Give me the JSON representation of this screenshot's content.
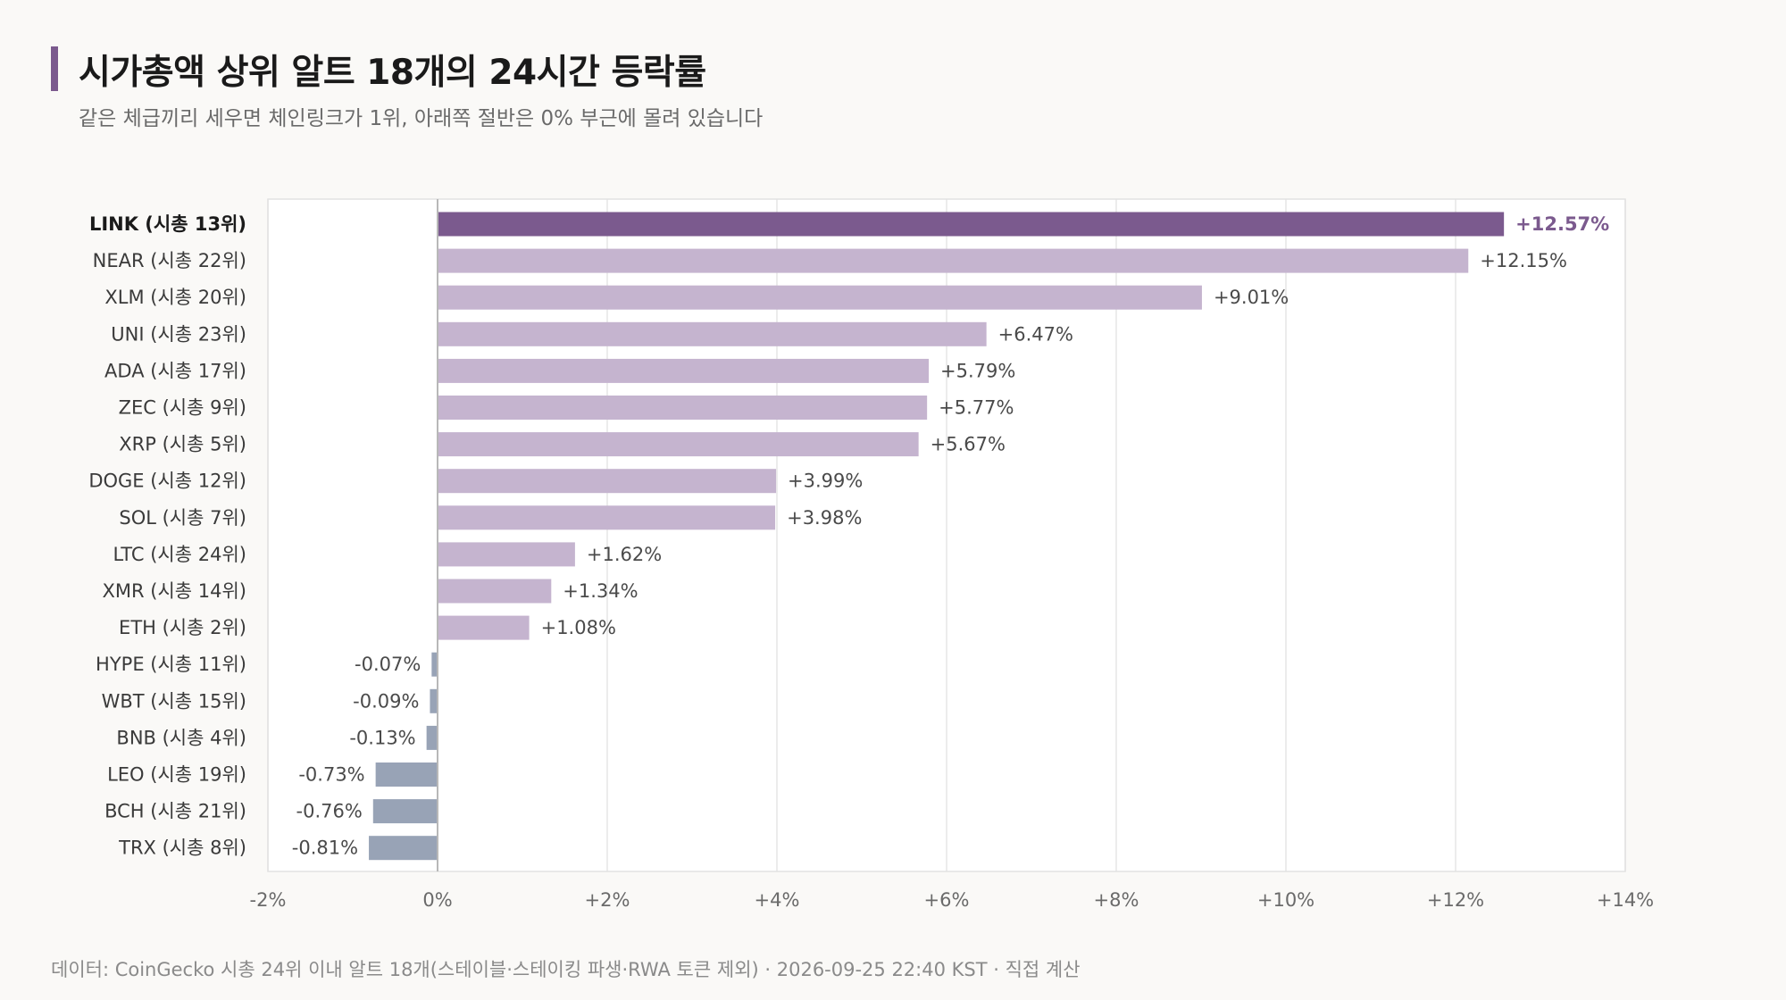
{
  "header": {
    "title": "시가총액 상위 알트 18개의 24시간 등락률",
    "subtitle": "같은 체급끼리 세우면 체인링크가 1위, 아래쪽 절반은 0% 부근에 몰려 있습니다"
  },
  "footer": {
    "source": "데이터: CoinGecko 시총 24위 이내 알트 18개(스테이블·스테이킹 파생·RWA 토큰 제외) · 2026-09-25 22:40 KST · 직접 계산"
  },
  "colors": {
    "accent": "#7b5a8e",
    "positive": "#c5b4cf",
    "negative": "#98a3b6",
    "grid": "#e6e6e6",
    "zero_line": "#b8b8b8"
  },
  "chart_data": {
    "type": "bar",
    "orientation": "horizontal",
    "categories": [
      "LINK  (시총 13위)",
      "NEAR  (시총 22위)",
      "XLM  (시총 20위)",
      "UNI  (시총 23위)",
      "ADA  (시총 17위)",
      "ZEC  (시총 9위)",
      "XRP  (시총 5위)",
      "DOGE  (시총 12위)",
      "SOL  (시총 7위)",
      "LTC  (시총 24위)",
      "XMR  (시총 14위)",
      "ETH  (시총 2위)",
      "HYPE  (시총 11위)",
      "WBT  (시총 15위)",
      "BNB  (시총 4위)",
      "LEO  (시총 19위)",
      "BCH  (시총 21위)",
      "TRX  (시총 8위)"
    ],
    "values": [
      12.57,
      12.15,
      9.01,
      6.47,
      5.79,
      5.77,
      5.67,
      3.99,
      3.98,
      1.62,
      1.34,
      1.08,
      -0.07,
      -0.09,
      -0.13,
      -0.73,
      -0.76,
      -0.81
    ],
    "value_labels": [
      "+12.57%",
      "+12.15%",
      "+9.01%",
      "+6.47%",
      "+5.79%",
      "+5.77%",
      "+5.67%",
      "+3.99%",
      "+3.98%",
      "+1.62%",
      "+1.34%",
      "+1.08%",
      "-0.07%",
      "-0.09%",
      "-0.13%",
      "-0.73%",
      "-0.76%",
      "-0.81%"
    ],
    "highlight_index": 0,
    "xlim": [
      -2,
      14
    ],
    "xticks": [
      -2,
      0,
      2,
      4,
      6,
      8,
      10,
      12,
      14
    ],
    "xtick_labels": [
      "-2%",
      "0%",
      "+2%",
      "+4%",
      "+6%",
      "+8%",
      "+10%",
      "+12%",
      "+14%"
    ],
    "grid": true,
    "legend": "none"
  }
}
